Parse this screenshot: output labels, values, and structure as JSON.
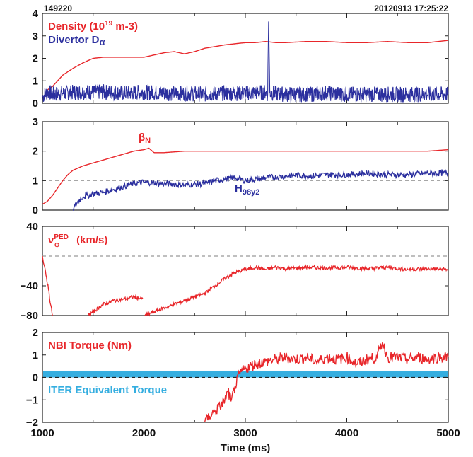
{
  "header": {
    "shot": "149220",
    "stamp": "20120913   17:25:22"
  },
  "colors": {
    "red": "#e8262a",
    "blue": "#2b2f9e",
    "cyan": "#35aee0",
    "axis": "#222222",
    "dash": "#999999"
  },
  "chart_data": [
    {
      "type": "line",
      "panel": "density",
      "ylim": [
        0,
        4
      ],
      "yticks": [
        0,
        1,
        2,
        3,
        4
      ],
      "xlim": [
        1000,
        5000
      ],
      "labels": {
        "line1_main": "Density (10",
        "line1_sup": "19",
        "line1_tail": " m-3)",
        "line2": "Divertor D",
        "line2_greek": "α"
      },
      "series": [
        {
          "name": "Density (10^19 m-3)",
          "color": "#e8262a",
          "x": [
            1050,
            1100,
            1150,
            1200,
            1300,
            1400,
            1500,
            1600,
            1800,
            2000,
            2100,
            2200,
            2300,
            2400,
            2500,
            2600,
            2800,
            3000,
            3100,
            3200,
            3300,
            3400,
            3600,
            3800,
            4000,
            4200,
            4400,
            4600,
            4800,
            5000
          ],
          "values": [
            0.6,
            0.75,
            1.0,
            1.25,
            1.55,
            1.8,
            2.0,
            2.05,
            2.05,
            2.05,
            2.15,
            2.25,
            2.3,
            2.2,
            2.3,
            2.45,
            2.6,
            2.7,
            2.7,
            2.75,
            2.7,
            2.7,
            2.75,
            2.75,
            2.7,
            2.7,
            2.75,
            2.7,
            2.7,
            2.8
          ]
        },
        {
          "name": "Divertor Dα",
          "color": "#2b2f9e",
          "x": [
            1000,
            1050,
            1100,
            1200,
            1400,
            1600,
            1800,
            2000,
            2200,
            2400,
            2600,
            2800,
            3000,
            3200,
            3220,
            3230,
            3240,
            3260,
            3400,
            3600,
            3800,
            4000,
            4200,
            4400,
            4600,
            4800,
            5000
          ],
          "values": [
            0.3,
            0.5,
            0.4,
            0.45,
            0.5,
            0.5,
            0.45,
            0.5,
            0.45,
            0.45,
            0.4,
            0.45,
            0.45,
            0.5,
            0.4,
            4.0,
            0.5,
            0.45,
            0.4,
            0.4,
            0.45,
            0.4,
            0.4,
            0.4,
            0.4,
            0.4,
            0.4
          ],
          "noise_amplitude": 0.35
        }
      ]
    },
    {
      "type": "line",
      "panel": "beta",
      "ylim": [
        0,
        3
      ],
      "yticks": [
        0,
        1,
        2,
        3
      ],
      "xlim": [
        1000,
        5000
      ],
      "reference_line": 1,
      "labels": {
        "beta": "β",
        "beta_sub": "N",
        "h": "H",
        "h_sub": "98y2"
      },
      "series": [
        {
          "name": "βN",
          "color": "#e8262a",
          "x": [
            1000,
            1050,
            1100,
            1150,
            1200,
            1250,
            1300,
            1400,
            1500,
            1600,
            1700,
            1800,
            1900,
            2000,
            2050,
            2100,
            2200,
            2400,
            2600,
            2800,
            3000,
            3200,
            3400,
            3600,
            3800,
            4000,
            4200,
            4400,
            4600,
            4800,
            5000
          ],
          "values": [
            0.2,
            0.3,
            0.5,
            0.75,
            1.0,
            1.2,
            1.35,
            1.5,
            1.6,
            1.7,
            1.8,
            1.9,
            2.0,
            2.05,
            2.1,
            1.95,
            1.95,
            2.0,
            2.0,
            2.0,
            2.0,
            2.0,
            2.0,
            2.0,
            2.0,
            2.0,
            2.0,
            2.0,
            2.0,
            2.0,
            2.05
          ]
        },
        {
          "name": "H98y2",
          "color": "#2b2f9e",
          "x": [
            1300,
            1350,
            1400,
            1450,
            1500,
            1600,
            1700,
            1800,
            1900,
            2000,
            2200,
            2400,
            2600,
            2700,
            2800,
            2900,
            3000,
            3200,
            3400,
            3500,
            3600,
            3800,
            4000,
            4200,
            4400,
            4600,
            4800,
            5000
          ],
          "values": [
            0.0,
            0.3,
            0.45,
            0.5,
            0.55,
            0.6,
            0.7,
            0.8,
            0.9,
            0.95,
            0.9,
            0.85,
            0.9,
            1.0,
            1.05,
            1.1,
            1.0,
            1.1,
            1.15,
            1.2,
            1.15,
            1.2,
            1.2,
            1.25,
            1.2,
            1.2,
            1.25,
            1.25
          ],
          "noise_amplitude": 0.1
        }
      ]
    },
    {
      "type": "line",
      "panel": "rotation",
      "ylim": [
        -80,
        40
      ],
      "yticks": [
        -80,
        -40,
        40
      ],
      "xlim": [
        1000,
        5000
      ],
      "reference_line": 0,
      "labels": {
        "v": "v",
        "v_sup": "PED",
        "v_sub": "φ",
        "unit": " (km/s)"
      },
      "series": [
        {
          "name": "vφPED (km/s)",
          "color": "#e8262a",
          "segments": [
            {
              "x": [
                1000,
                1030,
                1060,
                1080,
                1100
              ],
              "values": [
                0,
                -20,
                -45,
                -65,
                -80
              ]
            },
            {
              "x": [
                1450,
                1500,
                1600,
                1700,
                1800,
                1900,
                1990
              ],
              "values": [
                -80,
                -75,
                -65,
                -60,
                -58,
                -55,
                -58
              ]
            },
            {
              "x": [
                2010,
                2100,
                2200,
                2300,
                2400,
                2500,
                2600,
                2700,
                2800,
                2900,
                3000,
                3100,
                3200,
                3300,
                3400,
                3600,
                3800,
                4000,
                4200,
                4400,
                4600,
                4800,
                5000
              ],
              "values": [
                -80,
                -75,
                -70,
                -65,
                -60,
                -55,
                -50,
                -40,
                -30,
                -22,
                -18,
                -15,
                -18,
                -15,
                -17,
                -15,
                -16,
                -15,
                -17,
                -15,
                -18,
                -17,
                -18
              ]
            }
          ],
          "noise_amplitude": 2.5
        }
      ]
    },
    {
      "type": "line",
      "panel": "torque",
      "ylim": [
        -2,
        2
      ],
      "yticks": [
        -2,
        -1,
        0,
        1,
        2
      ],
      "xlim": [
        1000,
        5000
      ],
      "xticks": [
        1000,
        2000,
        3000,
        4000,
        5000
      ],
      "xlabel": "Time (ms)",
      "reference_line": 0,
      "band": {
        "from": 0,
        "to": 0.3,
        "label": "ITER Equivalent Torque",
        "color": "#35aee0"
      },
      "labels": {
        "title": "NBI Torque (Nm)"
      },
      "series": [
        {
          "name": "NBI Torque (Nm)",
          "color": "#e8262a",
          "x": [
            2600,
            2650,
            2700,
            2750,
            2800,
            2830,
            2860,
            2900,
            2950,
            3000,
            3100,
            3200,
            3300,
            3400,
            3500,
            3600,
            3700,
            3800,
            3900,
            4000,
            4100,
            4200,
            4300,
            4350,
            4400,
            4500,
            4600,
            4700,
            4800,
            4900,
            5000
          ],
          "values": [
            -2.0,
            -1.7,
            -1.5,
            -1.3,
            -1.0,
            -0.6,
            -1.1,
            -0.4,
            0.2,
            0.4,
            0.6,
            0.7,
            0.8,
            0.9,
            0.8,
            0.9,
            0.7,
            0.9,
            0.8,
            0.9,
            0.6,
            0.8,
            0.9,
            1.6,
            0.9,
            0.9,
            0.8,
            0.9,
            0.8,
            0.9,
            0.9
          ],
          "noise_amplitude": 0.25
        }
      ]
    }
  ]
}
